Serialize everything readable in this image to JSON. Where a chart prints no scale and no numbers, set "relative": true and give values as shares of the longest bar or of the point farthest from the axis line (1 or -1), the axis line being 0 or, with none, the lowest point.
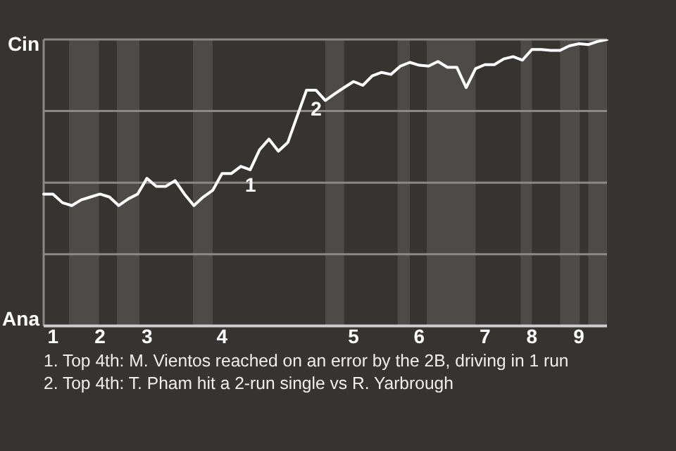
{
  "chart_data": {
    "type": "line",
    "relative": true,
    "categories": [
      null,
      "1",
      null,
      null,
      null,
      null,
      "2",
      null,
      null,
      null,
      null,
      "3",
      null,
      null,
      null,
      null,
      null,
      null,
      null,
      "4",
      null,
      null,
      null,
      null,
      null,
      null,
      null,
      null,
      null,
      null,
      null,
      null,
      null,
      "5",
      null,
      null,
      null,
      null,
      null,
      null,
      "6",
      null,
      null,
      null,
      null,
      null,
      null,
      "7",
      null,
      null,
      null,
      null,
      "8",
      null,
      null,
      null,
      null,
      "9",
      null,
      null,
      null
    ],
    "series": [
      {
        "color": "#ffffff",
        "values": [
          0.46,
          0.46,
          0.43,
          0.42,
          0.44,
          0.45,
          0.46,
          0.45,
          0.42,
          0.443,
          0.46,
          0.515,
          0.487,
          0.487,
          0.507,
          0.46,
          0.42,
          0.45,
          0.473,
          0.532,
          0.532,
          0.557,
          0.545,
          0.615,
          0.652,
          0.61,
          0.64,
          0.732,
          0.823,
          0.823,
          0.787,
          0.81,
          0.832,
          0.853,
          0.84,
          0.873,
          0.885,
          0.878,
          0.907,
          0.92,
          0.91,
          0.907,
          0.923,
          0.903,
          0.903,
          0.832,
          0.898,
          0.912,
          0.912,
          0.932,
          0.94,
          0.928,
          0.965,
          0.965,
          0.962,
          0.962,
          0.978,
          0.985,
          0.982,
          0.993,
          1
        ]
      }
    ],
    "grid": "y",
    "marker": "none",
    "line_style": "solid",
    "legend": false,
    "annotations": [
      "Cin",
      "Ana",
      {
        "text": "1",
        "y": 0.557
      },
      {
        "text": "2",
        "y": 0.823
      },
      "1. Top 4th: M. Vientos reached on an error by the 2B, driving in 1 run",
      "2. Top 4th: T. Pham hit a 2-run single vs R. Yarbrough"
    ]
  }
}
